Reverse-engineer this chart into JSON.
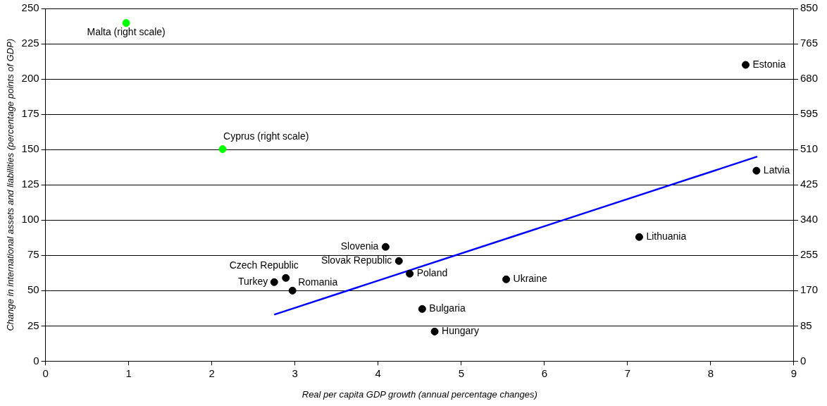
{
  "chart_data": {
    "type": "scatter",
    "xlabel": "Real per capita GDP growth (annual percentage changes)",
    "ylabel": "Change in international assets and liabilities (percentage points of GDP)",
    "xlim": [
      0,
      9
    ],
    "xticks": [
      0,
      1,
      2,
      3,
      4,
      5,
      6,
      7,
      8,
      9
    ],
    "ylim": [
      0,
      250
    ],
    "yticks": [
      0,
      25,
      50,
      75,
      100,
      125,
      150,
      175,
      200,
      225,
      250
    ],
    "y2lim": [
      0,
      850
    ],
    "y2ticks": [
      0,
      85,
      170,
      255,
      340,
      425,
      510,
      595,
      680,
      765,
      850
    ],
    "grid": "y",
    "legend": false,
    "marker": "circle",
    "series": [
      {
        "name": "Malta (right scale)",
        "color": "#00ff00",
        "axis": "y2",
        "x": [
          0.97
        ],
        "values": [
          815
        ]
      },
      {
        "name": "Cyprus (right scale)",
        "color": "#00ff00",
        "axis": "y2",
        "x": [
          2.13
        ],
        "values": [
          511
        ]
      },
      {
        "name": "Estonia",
        "color": "#000000",
        "x": [
          8.42
        ],
        "values": [
          210
        ]
      },
      {
        "name": "Latvia",
        "color": "#000000",
        "x": [
          8.55
        ],
        "values": [
          135
        ]
      },
      {
        "name": "Lithuania",
        "color": "#000000",
        "x": [
          7.14
        ],
        "values": [
          88
        ]
      },
      {
        "name": "Slovenia",
        "color": "#000000",
        "x": [
          4.09
        ],
        "values": [
          81
        ]
      },
      {
        "name": "Slovak Republic",
        "color": "#000000",
        "x": [
          4.25
        ],
        "values": [
          71
        ]
      },
      {
        "name": "Poland",
        "color": "#000000",
        "x": [
          4.38
        ],
        "values": [
          62
        ]
      },
      {
        "name": "Ukraine",
        "color": "#000000",
        "x": [
          5.54
        ],
        "values": [
          58
        ]
      },
      {
        "name": "Czech Republic",
        "color": "#000000",
        "x": [
          2.89
        ],
        "values": [
          59
        ]
      },
      {
        "name": "Turkey",
        "color": "#000000",
        "x": [
          2.75
        ],
        "values": [
          56
        ]
      },
      {
        "name": "Romania",
        "color": "#000000",
        "x": [
          2.97
        ],
        "values": [
          50
        ]
      },
      {
        "name": "Bulgaria",
        "color": "#000000",
        "x": [
          4.53
        ],
        "values": [
          37
        ]
      },
      {
        "name": "Hungary",
        "color": "#000000",
        "x": [
          4.68
        ],
        "values": [
          21
        ]
      },
      {
        "type": "line",
        "marker": "none",
        "color": "#0000ff",
        "x": [
          2.75,
          8.56
        ],
        "values": [
          33,
          145
        ]
      }
    ]
  }
}
